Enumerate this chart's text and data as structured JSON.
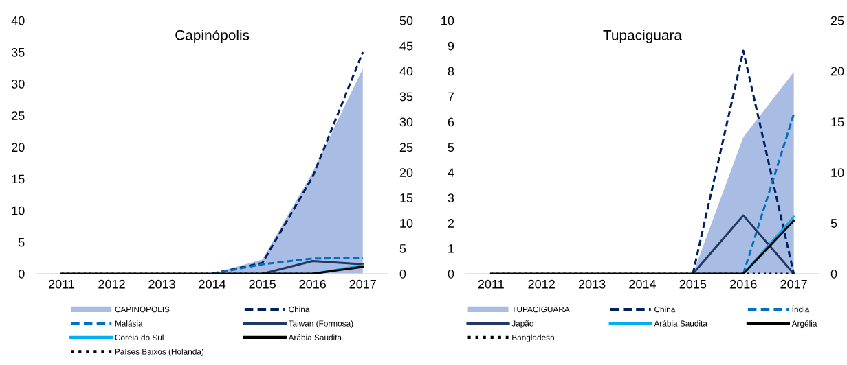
{
  "chart_data": [
    {
      "type": "line",
      "title": "Capinópolis",
      "categories": [
        "2011",
        "2012",
        "2013",
        "2014",
        "2015",
        "2016",
        "2017"
      ],
      "ylim": [
        0,
        40
      ],
      "yticks": [
        0,
        5,
        10,
        15,
        20,
        25,
        30,
        35,
        40
      ],
      "y2lim": [
        0,
        50
      ],
      "y2ticks": [
        0,
        5,
        10,
        15,
        20,
        25,
        30,
        35,
        40,
        45,
        50
      ],
      "legend": "bottom",
      "marker": "none",
      "series": [
        {
          "name": "CAPINOPOLIS",
          "type": "area",
          "axis": "y2",
          "color": "#a9bde4",
          "values": [
            0,
            0,
            0,
            0,
            2.8,
            20,
            40.5
          ]
        },
        {
          "name": "China",
          "color": "#002060",
          "line_style": "dashed",
          "values": [
            null,
            null,
            null,
            0,
            1.7,
            15.3,
            35
          ]
        },
        {
          "name": "Malásia",
          "color": "#0070c0",
          "line_style": "dashed",
          "values": [
            null,
            null,
            null,
            0,
            1.5,
            2.4,
            2.5
          ]
        },
        {
          "name": "Taiwan (Formosa)",
          "color": "#1f3864",
          "line_style": "solid",
          "values": [
            null,
            null,
            null,
            null,
            0,
            2.0,
            1.5
          ]
        },
        {
          "name": "Coreia do Sul",
          "color": "#00b0f0",
          "line_style": "solid",
          "values": [
            null,
            null,
            null,
            null,
            null,
            0,
            1.3
          ]
        },
        {
          "name": "Arábia Saudita",
          "color": "#000000",
          "line_style": "solid",
          "values": [
            0,
            0,
            0,
            0,
            0,
            0,
            1.1
          ]
        },
        {
          "name": "Países Baixos (Holanda)",
          "color": "#000000",
          "line_style": "dotted",
          "values": [
            0,
            0,
            0,
            0,
            0,
            0,
            null
          ]
        }
      ]
    },
    {
      "type": "line",
      "title": "Tupaciguara",
      "categories": [
        "2011",
        "2012",
        "2013",
        "2014",
        "2015",
        "2016",
        "2017"
      ],
      "ylim": [
        0,
        10
      ],
      "yticks": [
        0,
        1,
        2,
        3,
        4,
        5,
        6,
        7,
        8,
        9,
        10
      ],
      "y2lim": [
        0,
        25
      ],
      "y2ticks": [
        0,
        5,
        10,
        15,
        20,
        25
      ],
      "legend": "bottom",
      "marker": "none",
      "series": [
        {
          "name": "TUPACIGUARA",
          "type": "area",
          "axis": "y2",
          "color": "#a9bde4",
          "values": [
            0,
            0,
            0,
            0,
            0,
            13.5,
            19.9
          ]
        },
        {
          "name": "China",
          "color": "#002060",
          "line_style": "dashed",
          "values": [
            null,
            null,
            null,
            null,
            0,
            8.8,
            0
          ]
        },
        {
          "name": "Índia",
          "color": "#0070c0",
          "line_style": "dashed",
          "values": [
            null,
            null,
            null,
            null,
            null,
            0,
            6.3
          ]
        },
        {
          "name": "Japão",
          "color": "#1f3864",
          "line_style": "solid",
          "values": [
            null,
            null,
            null,
            null,
            0,
            2.3,
            0
          ]
        },
        {
          "name": "Arábia Saudita",
          "color": "#00b0f0",
          "line_style": "solid",
          "values": [
            null,
            null,
            null,
            null,
            null,
            0,
            2.25
          ]
        },
        {
          "name": "Argélia",
          "color": "#000000",
          "line_style": "solid",
          "values": [
            0,
            0,
            0,
            0,
            0,
            0,
            2.1
          ]
        },
        {
          "name": "Bangladesh",
          "color": "#000000",
          "line_style": "dotted",
          "values": [
            0,
            0,
            0,
            0,
            0,
            0,
            0
          ]
        }
      ]
    }
  ]
}
